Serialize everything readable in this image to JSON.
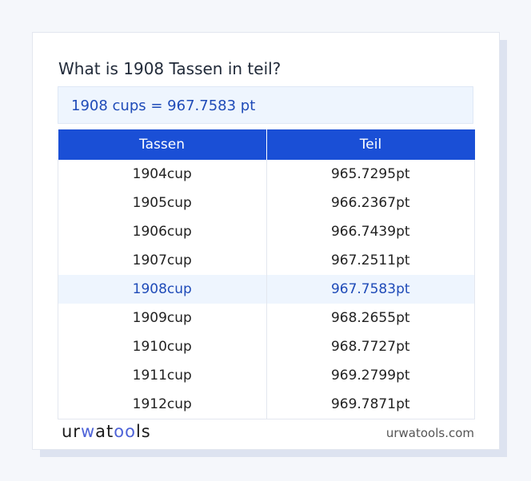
{
  "title": "What is 1908 Tassen in teil?",
  "result": "1908 cups = 967.7583 pt",
  "table": {
    "headers": [
      "Tassen",
      "Teil"
    ],
    "rows": [
      [
        "1904cup",
        "965.7295pt"
      ],
      [
        "1905cup",
        "966.2367pt"
      ],
      [
        "1906cup",
        "966.7439pt"
      ],
      [
        "1907cup",
        "967.2511pt"
      ],
      [
        "1908cup",
        "967.7583pt"
      ],
      [
        "1909cup",
        "968.2655pt"
      ],
      [
        "1910cup",
        "968.7727pt"
      ],
      [
        "1911cup",
        "969.2799pt"
      ],
      [
        "1912cup",
        "969.7871pt"
      ]
    ],
    "highlighted": "1908cup"
  },
  "footer": {
    "logo": "urwatools",
    "site": "urwatools.com"
  },
  "colors": {
    "accent": "#1a4fd6",
    "highlight_bg": "#eef5fe"
  }
}
